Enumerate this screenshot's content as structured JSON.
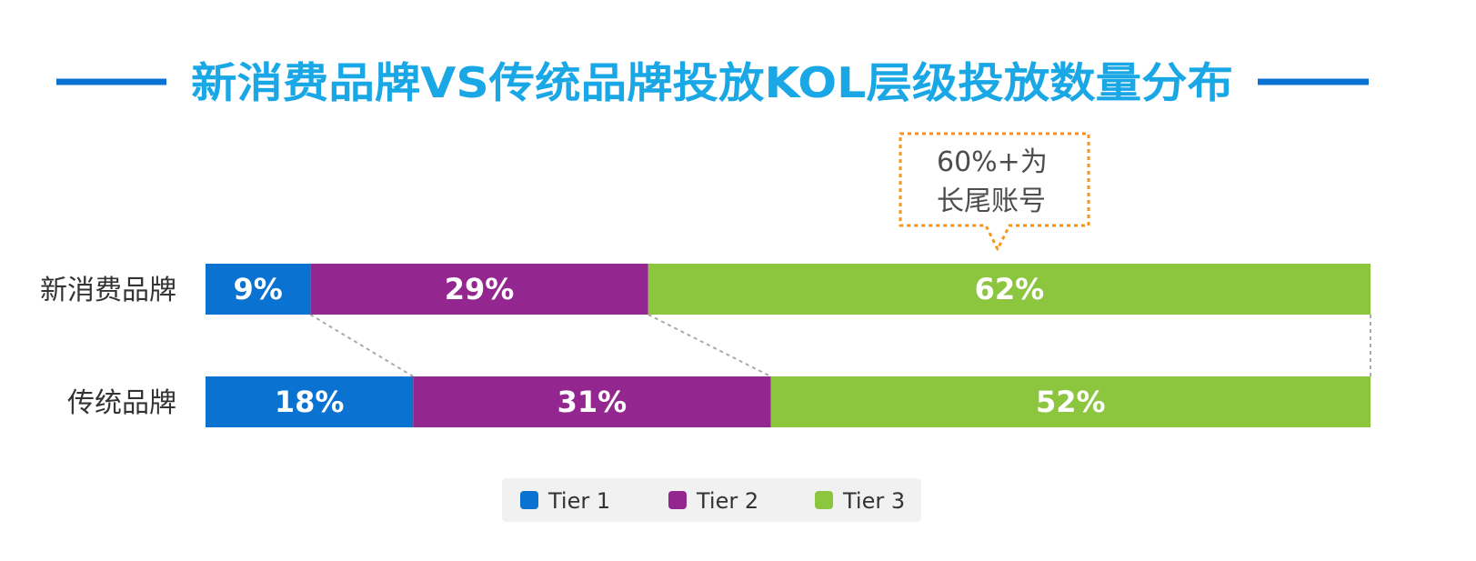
{
  "chart_data": {
    "type": "bar",
    "orientation": "horizontal",
    "stacked": "percent",
    "title": "新消费品牌VS传统品牌投放KOL层级投放数量分布",
    "categories": [
      "新消费品牌",
      "传统品牌"
    ],
    "series": [
      {
        "name": "Tier 1",
        "values": [
          9,
          18
        ],
        "labels": [
          "9%",
          "18%"
        ],
        "color": "#0a72d1"
      },
      {
        "name": "Tier 2",
        "values": [
          29,
          31
        ],
        "labels": [
          "29%",
          "31%"
        ],
        "color": "#93278f"
      },
      {
        "name": "Tier 3",
        "values": [
          62,
          52
        ],
        "labels": [
          "62%",
          "52%"
        ],
        "color": "#8cc63f"
      }
    ],
    "annotation": {
      "lines": [
        "60%+为",
        "长尾账号"
      ],
      "target_category": "新消费品牌",
      "target_series": "Tier 3",
      "border_color": "#f7931e"
    },
    "legend_position": "bottom-center",
    "grid": false
  },
  "colors": {
    "title": "#1aa7e6",
    "title_rule": "#0a72d1",
    "category_label": "#333333",
    "bar_label": "#ffffff",
    "connector": "#aaaaaa",
    "legend_bg": "#f1f1f1",
    "legend_text": "#333333",
    "annotation_text": "#4d4d4d"
  }
}
